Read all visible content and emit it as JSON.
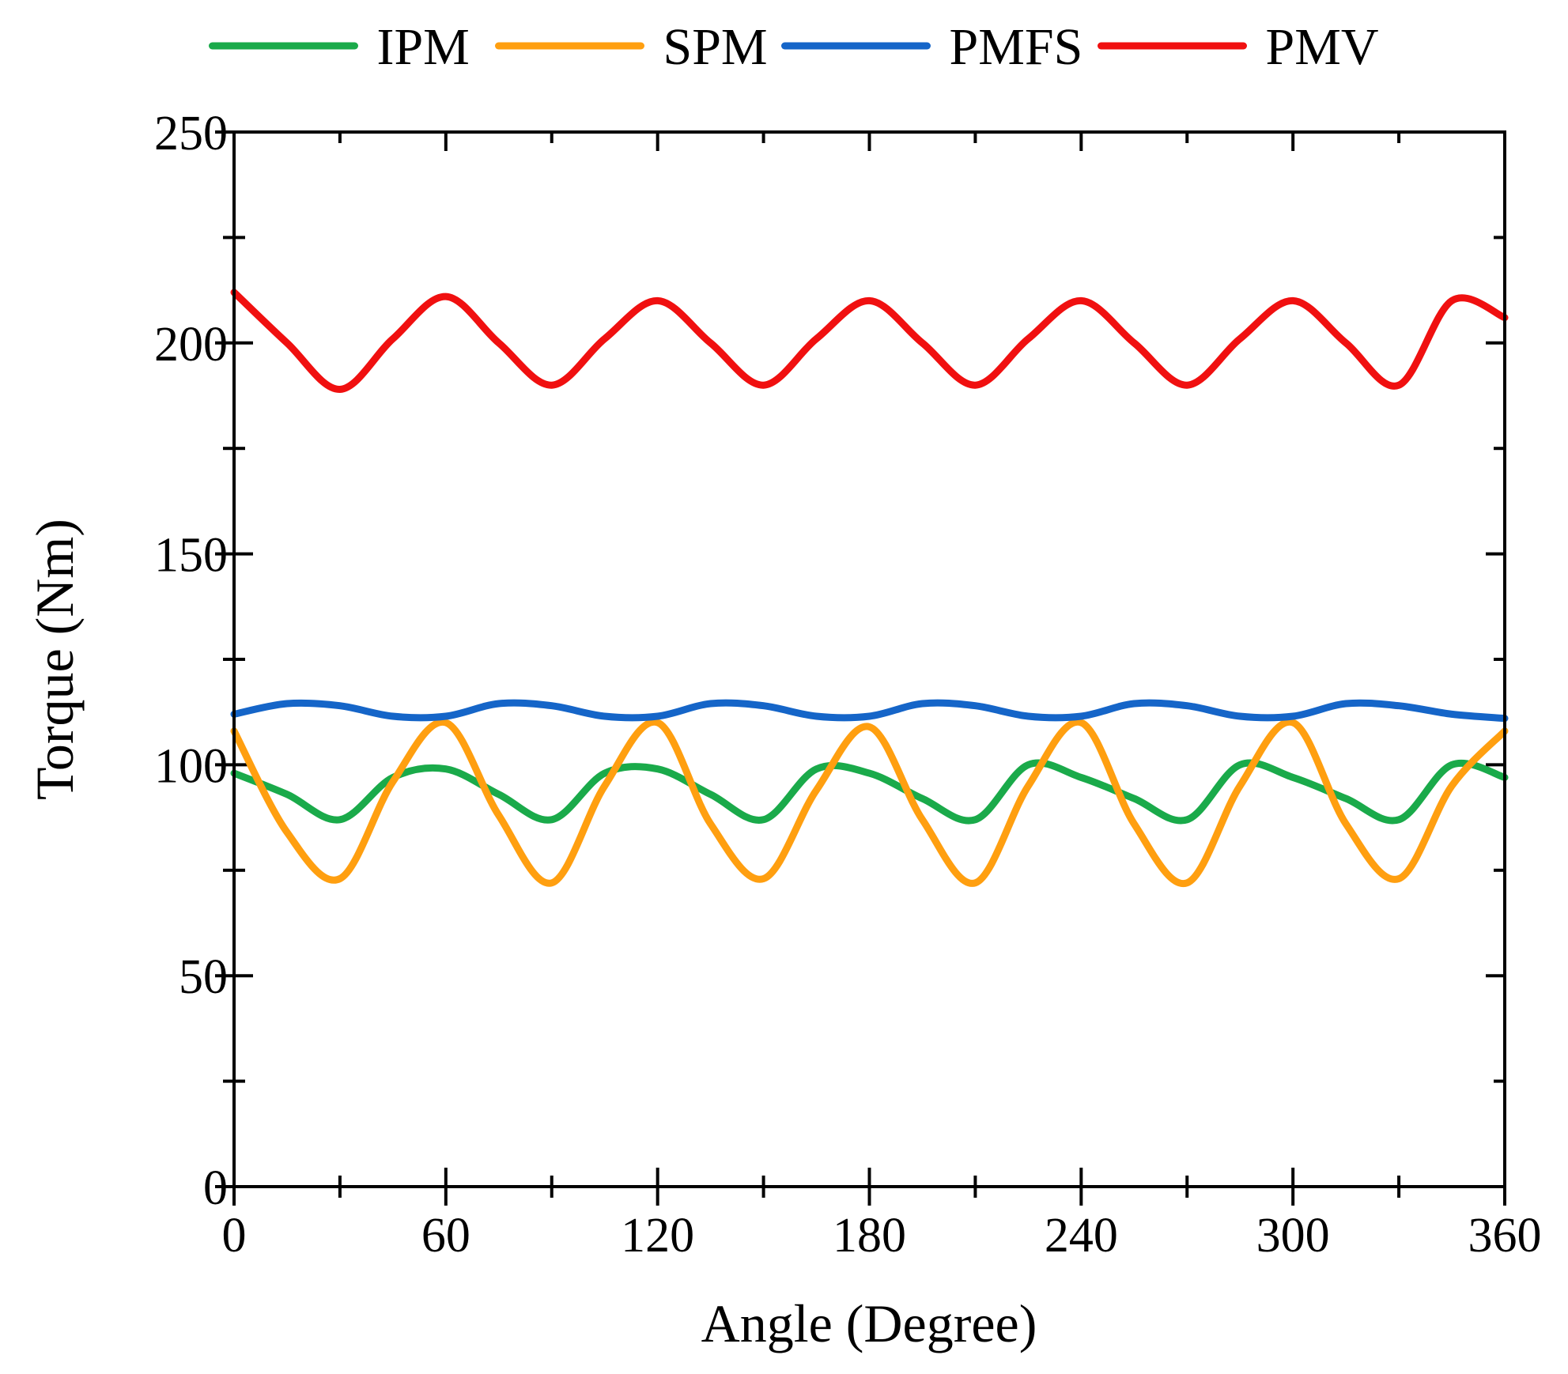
{
  "chart_data": {
    "type": "line",
    "title": "",
    "xlabel": "Angle (Degree)",
    "ylabel": "Torque (Nm)",
    "xlim": [
      0,
      360
    ],
    "ylim": [
      0,
      250
    ],
    "xticks": [
      0,
      60,
      120,
      180,
      240,
      300,
      360
    ],
    "yticks": [
      0,
      50,
      100,
      150,
      200,
      250
    ],
    "x_tick_labels": [
      "0",
      "60",
      "120",
      "180",
      "240",
      "300",
      "360"
    ],
    "y_tick_labels": [
      "0",
      "50",
      "100",
      "150",
      "200",
      "250"
    ],
    "legend_position": "top",
    "grid": false,
    "x": [
      0,
      15,
      30,
      45,
      60,
      75,
      90,
      105,
      120,
      135,
      150,
      165,
      180,
      195,
      210,
      225,
      240,
      255,
      270,
      285,
      300,
      315,
      330,
      345,
      360
    ],
    "series": [
      {
        "name": "IPM",
        "color": "#1aaa4a",
        "values": [
          98,
          93,
          87,
          97,
          99,
          93,
          87,
          98,
          99,
          93,
          87,
          99,
          98,
          92,
          87,
          100,
          97,
          92,
          87,
          100,
          97,
          92,
          87,
          100,
          97
        ]
      },
      {
        "name": "SPM",
        "color": "#ff9f10",
        "values": [
          108,
          84,
          73,
          96,
          110,
          88,
          72,
          95,
          110,
          86,
          73,
          94,
          109,
          87,
          72,
          95,
          110,
          86,
          72,
          95,
          110,
          86,
          73,
          95,
          108
        ]
      },
      {
        "name": "PMFS",
        "color": "#1565c8",
        "values": [
          112,
          114.5,
          114,
          111.5,
          111.5,
          114.5,
          114,
          111.5,
          111.5,
          114.5,
          114,
          111.5,
          111.5,
          114.5,
          114,
          111.5,
          111.5,
          114.5,
          114,
          111.5,
          111.5,
          114.5,
          114,
          112,
          111
        ]
      },
      {
        "name": "PMV",
        "color": "#f01010",
        "values": [
          212,
          200,
          189,
          201,
          211,
          200,
          190,
          201,
          210,
          200,
          190,
          201,
          210,
          200,
          190,
          201,
          210,
          200,
          190,
          201,
          210,
          200,
          190,
          210,
          206
        ]
      }
    ]
  }
}
